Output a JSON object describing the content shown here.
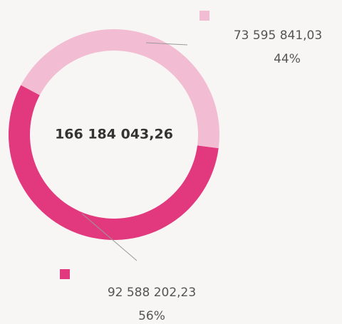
{
  "chart_data": {
    "type": "donut",
    "center_label": "166 184 043,26",
    "series": [
      {
        "color": "#f2bdd2",
        "values": [
          73595841.03
        ],
        "value_labels": [
          "73 595 841,03"
        ],
        "percent_labels": [
          "44%"
        ]
      },
      {
        "color": "#e2397e",
        "values": [
          92588202.23
        ],
        "value_labels": [
          "92 588 202,23"
        ],
        "percent_labels": [
          "56%"
        ]
      }
    ]
  }
}
